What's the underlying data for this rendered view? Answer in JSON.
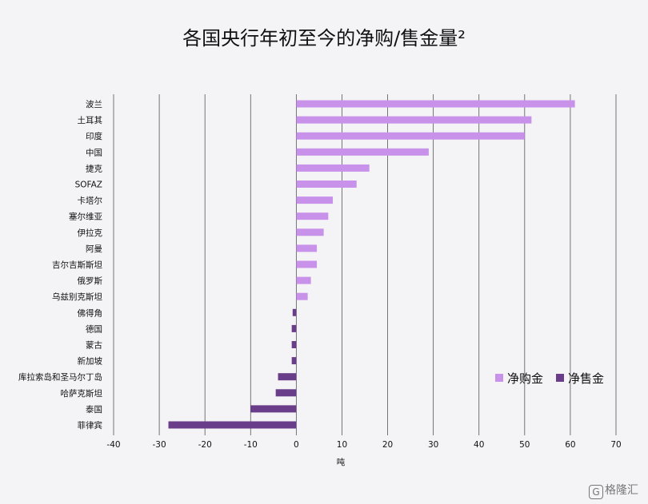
{
  "chart_data": {
    "type": "bar",
    "orientation": "horizontal",
    "title": "各国央行年初至今的净购/售金量²",
    "xlabel": "吨",
    "ylabel": "",
    "xlim": [
      -40,
      70
    ],
    "x_ticks": [
      -40,
      -30,
      -20,
      -10,
      0,
      10,
      20,
      30,
      40,
      50,
      60,
      70
    ],
    "grid": "vertical",
    "legend_position": "bottom-right",
    "categories": [
      "波兰",
      "土耳其",
      "印度",
      "中国",
      "捷克",
      "SOFAZ",
      "卡塔尔",
      "塞尔维亚",
      "伊拉克",
      "阿曼",
      "吉尔吉斯斯坦",
      "俄罗斯",
      "乌兹别克斯坦",
      "佛得角",
      "德国",
      "蒙古",
      "新加坡",
      "库拉索岛和圣马尔丁岛",
      "哈萨克斯坦",
      "泰国",
      "菲律宾"
    ],
    "values": [
      61,
      51.5,
      50,
      29,
      16,
      13.2,
      8,
      7,
      6,
      4.5,
      4.5,
      3.2,
      2.5,
      -0.8,
      -1,
      -1,
      -1,
      -4,
      -4.5,
      -10,
      -28
    ],
    "series": [
      {
        "name": "净购金",
        "color": "#c891ea"
      },
      {
        "name": "净售金",
        "color": "#6a3d8a"
      }
    ]
  },
  "watermark": {
    "icon": "G",
    "text": "格隆汇"
  }
}
